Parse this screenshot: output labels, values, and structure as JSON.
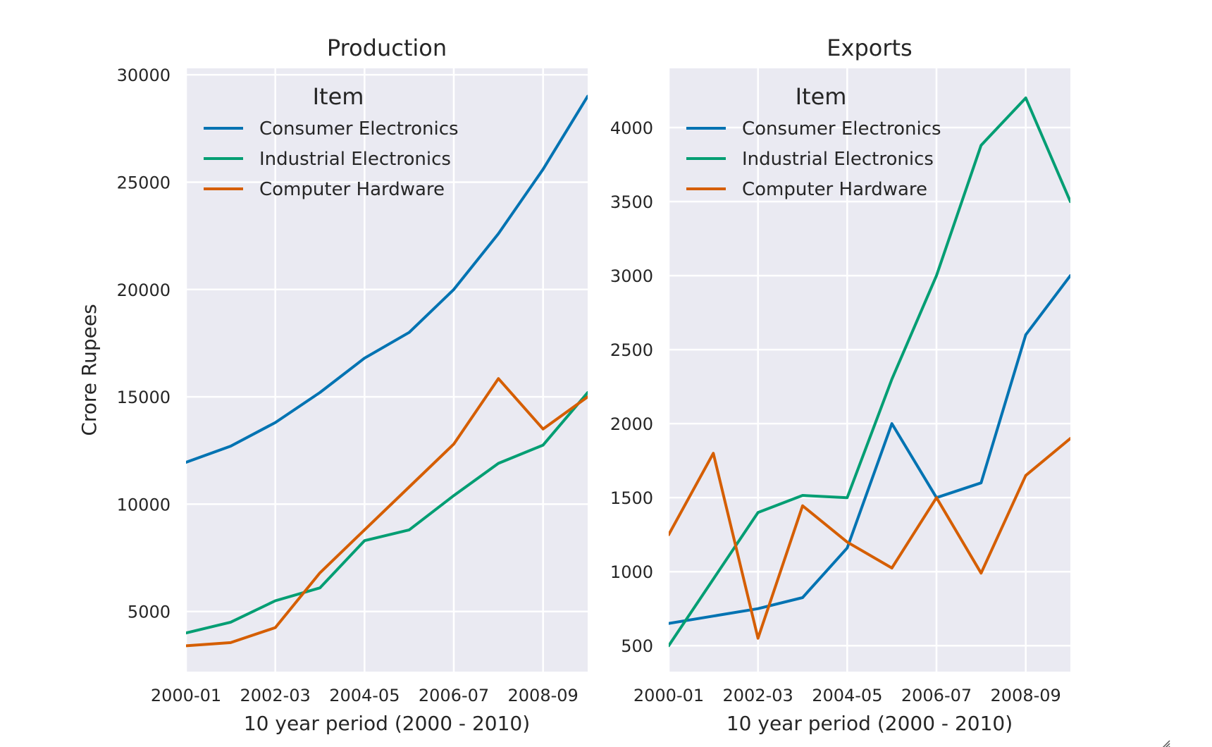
{
  "chart_data": [
    {
      "type": "line",
      "title": "Production",
      "xlabel": "10 year period (2000 - 2010)",
      "ylabel": "Crore Rupees",
      "x": [
        "2000-01",
        "2001-02",
        "2002-03",
        "2003-04",
        "2004-05",
        "2005-06",
        "2006-07",
        "2007-08",
        "2008-09",
        "2009-10"
      ],
      "xticks": [
        "2000-01",
        "2002-03",
        "2004-05",
        "2006-07",
        "2008-09"
      ],
      "yticks": [
        5000,
        10000,
        15000,
        20000,
        25000,
        30000
      ],
      "ylim": [
        2200,
        30300
      ],
      "legend_title": "Item",
      "legend_placement": "top-left",
      "grid": true,
      "series": [
        {
          "name": "Consumer Electronics",
          "color": "#0173b2",
          "values": [
            11950,
            12700,
            13800,
            15200,
            16800,
            18000,
            20000,
            22600,
            25600,
            29000
          ]
        },
        {
          "name": "Industrial Electronics",
          "color": "#029e73",
          "values": [
            4000,
            4500,
            5500,
            6100,
            8300,
            8800,
            10400,
            11900,
            12750,
            15200
          ]
        },
        {
          "name": "Computer Hardware",
          "color": "#d55e00",
          "values": [
            3400,
            3550,
            4250,
            6800,
            8800,
            10800,
            12800,
            15850,
            13500,
            15000
          ]
        }
      ]
    },
    {
      "type": "line",
      "title": "Exports",
      "xlabel": "10 year period (2000 - 2010)",
      "ylabel": "",
      "x": [
        "2000-01",
        "2001-02",
        "2002-03",
        "2003-04",
        "2004-05",
        "2005-06",
        "2006-07",
        "2007-08",
        "2008-09",
        "2009-10"
      ],
      "xticks": [
        "2000-01",
        "2002-03",
        "2004-05",
        "2006-07",
        "2008-09"
      ],
      "yticks": [
        500,
        1000,
        1500,
        2000,
        2500,
        3000,
        3500,
        4000
      ],
      "ylim": [
        325,
        4400
      ],
      "legend_title": "Item",
      "legend_placement": "top-left",
      "grid": true,
      "series": [
        {
          "name": "Consumer Electronics",
          "color": "#0173b2",
          "values": [
            650,
            700,
            750,
            825,
            1160,
            2000,
            1500,
            1600,
            2600,
            3000
          ]
        },
        {
          "name": "Industrial Electronics",
          "color": "#029e73",
          "values": [
            500,
            950,
            1400,
            1515,
            1500,
            2300,
            3000,
            3880,
            4200,
            3500
          ]
        },
        {
          "name": "Computer Hardware",
          "color": "#d55e00",
          "values": [
            1250,
            1800,
            550,
            1445,
            1200,
            1025,
            1500,
            990,
            1650,
            1900
          ]
        }
      ]
    }
  ]
}
